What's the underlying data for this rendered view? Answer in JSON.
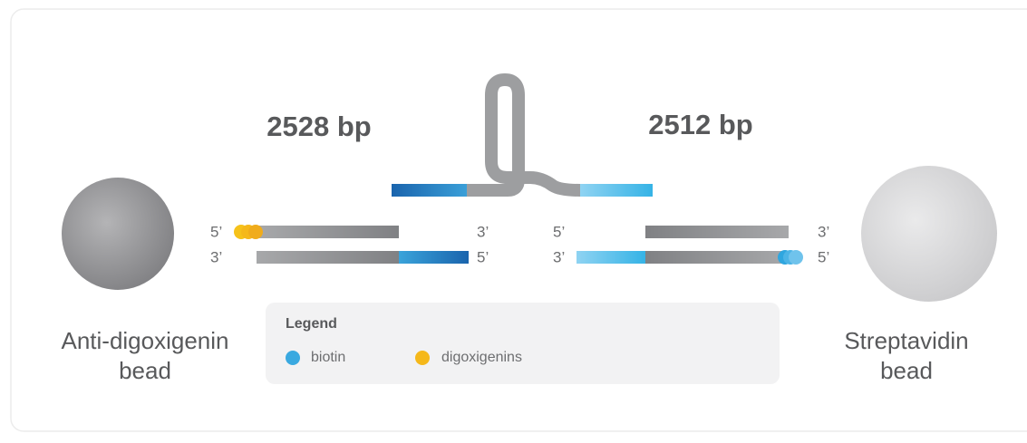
{
  "fragments": [
    {
      "label": "2528 bp"
    },
    {
      "label": "2512 bp"
    }
  ],
  "strand_ends": {
    "left": {
      "top": [
        "5’",
        "3’"
      ],
      "bottom": [
        "3’",
        "5’"
      ]
    },
    "right": {
      "top": [
        "5’",
        "3’"
      ],
      "bottom": [
        "3’",
        "5’"
      ]
    }
  },
  "beads": [
    {
      "label_lines": [
        "Anti-digoxigenin",
        "bead"
      ]
    },
    {
      "label_lines": [
        "Streptavidin",
        "bead"
      ]
    }
  ],
  "legend": {
    "title": "Legend",
    "items": [
      "biotin",
      "digoxigenins"
    ]
  }
}
